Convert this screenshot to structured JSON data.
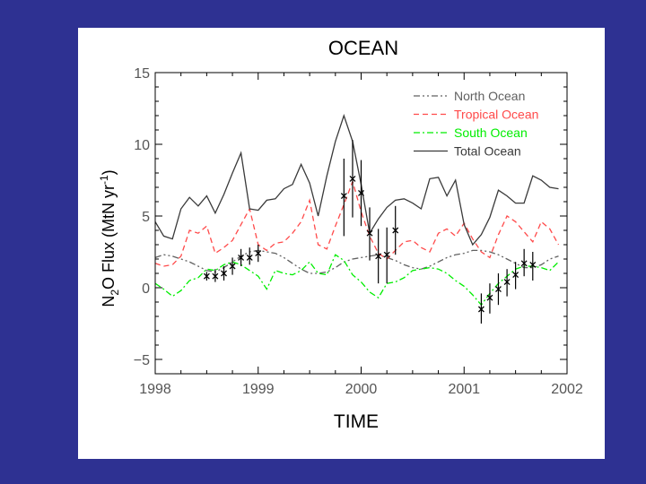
{
  "chart_data": {
    "type": "line",
    "title": "OCEAN",
    "xlabel": "TIME",
    "ylabel": "N2O Flux (MtN yr-1)",
    "ylabel_parts": {
      "pre": "N",
      "sub": "2",
      "mid": "O Flux (MtN yr",
      "sup": "-1",
      "post": ")"
    },
    "xlim": [
      1998,
      2002
    ],
    "ylim": [
      -6,
      15
    ],
    "xticks": [
      1998,
      1999,
      2000,
      2001,
      2002
    ],
    "xtick_labels": [
      "1998",
      "1999",
      "2000",
      "2001",
      "2002"
    ],
    "yticks": [
      -5,
      0,
      5,
      10,
      15
    ],
    "ytick_labels": [
      "−5",
      "0",
      "5",
      "10",
      "15"
    ],
    "legend_position": "top-right",
    "x": [
      1998.0,
      1998.083,
      1998.167,
      1998.25,
      1998.333,
      1998.417,
      1998.5,
      1998.583,
      1998.667,
      1998.75,
      1998.833,
      1998.917,
      1999.0,
      1999.083,
      1999.167,
      1999.25,
      1999.333,
      1999.417,
      1999.5,
      1999.583,
      1999.667,
      1999.75,
      1999.833,
      1999.917,
      2000.0,
      2000.083,
      2000.167,
      2000.25,
      2000.333,
      2000.417,
      2000.5,
      2000.583,
      2000.667,
      2000.75,
      2000.833,
      2000.917,
      2001.0,
      2001.083,
      2001.167,
      2001.25,
      2001.333,
      2001.417,
      2001.5,
      2001.583,
      2001.667,
      2001.75,
      2001.833,
      2001.917
    ],
    "series": [
      {
        "name": "North Ocean",
        "color": "#606060",
        "dash": "7 3 2 3 2 3",
        "values": [
          2.1,
          2.3,
          2.2,
          2.0,
          1.8,
          1.5,
          1.2,
          1.1,
          1.4,
          1.8,
          2.2,
          2.5,
          2.6,
          2.5,
          2.4,
          2.1,
          1.7,
          1.3,
          1.0,
          1.0,
          1.1,
          1.4,
          1.8,
          2.0,
          2.1,
          2.2,
          2.3,
          2.1,
          1.9,
          1.6,
          1.4,
          1.3,
          1.5,
          1.8,
          2.1,
          2.3,
          2.4,
          2.6,
          2.6,
          2.5,
          2.3,
          2.0,
          1.7,
          1.4,
          1.4,
          1.6,
          2.0,
          2.2
        ]
      },
      {
        "name": "Tropical Ocean",
        "color": "#ff4a4a",
        "dash": "6 4",
        "values": [
          1.7,
          1.5,
          1.6,
          2.2,
          4.0,
          3.8,
          4.3,
          2.4,
          2.8,
          3.3,
          4.4,
          5.5,
          3.0,
          2.6,
          3.1,
          3.2,
          3.8,
          4.6,
          6.1,
          3.0,
          2.7,
          4.3,
          5.8,
          7.4,
          5.3,
          3.6,
          2.4,
          2.0,
          2.6,
          3.2,
          3.3,
          2.8,
          2.5,
          3.8,
          4.1,
          3.6,
          4.5,
          3.4,
          2.5,
          2.1,
          3.7,
          5.0,
          4.6,
          3.9,
          3.2,
          4.6,
          4.1,
          3.0
        ]
      },
      {
        "name": "South Ocean",
        "color": "#00ee00",
        "dash": "7 3 2 3",
        "values": [
          0.3,
          -0.1,
          -0.6,
          -0.2,
          0.5,
          0.7,
          1.3,
          1.2,
          1.6,
          1.8,
          1.6,
          1.2,
          0.8,
          -0.1,
          1.2,
          1.0,
          0.9,
          1.2,
          1.8,
          1.0,
          0.9,
          2.3,
          1.9,
          0.9,
          0.4,
          -0.3,
          -0.7,
          0.3,
          0.4,
          0.7,
          1.2,
          1.3,
          1.4,
          1.3,
          1.0,
          0.5,
          0.1,
          -0.5,
          -1.2,
          -0.4,
          0.3,
          0.8,
          1.3,
          1.5,
          1.5,
          1.4,
          1.2,
          1.8
        ]
      },
      {
        "name": "Total Ocean",
        "color": "#3a3a3a",
        "dash": "",
        "values": [
          4.6,
          3.6,
          3.4,
          5.5,
          6.3,
          5.7,
          6.4,
          5.2,
          6.5,
          8.0,
          9.4,
          5.5,
          5.4,
          6.1,
          6.2,
          6.9,
          7.2,
          8.6,
          7.3,
          5.0,
          7.8,
          10.2,
          12.0,
          10.2,
          7.2,
          3.8,
          4.8,
          5.6,
          6.1,
          6.2,
          5.9,
          5.5,
          7.6,
          7.7,
          6.4,
          7.5,
          4.4,
          3.0,
          3.7,
          4.9,
          6.8,
          6.4,
          5.9,
          5.9,
          7.8,
          7.5,
          7.0,
          6.9
        ]
      }
    ],
    "observations": {
      "name": "observations",
      "points": [
        {
          "x": 1998.5,
          "y": 0.8,
          "lo": 0.5,
          "hi": 1.1
        },
        {
          "x": 1998.583,
          "y": 0.8,
          "lo": 0.4,
          "hi": 1.3
        },
        {
          "x": 1998.667,
          "y": 1.0,
          "lo": 0.5,
          "hi": 1.5
        },
        {
          "x": 1998.75,
          "y": 1.5,
          "lo": 0.9,
          "hi": 2.1
        },
        {
          "x": 1998.833,
          "y": 2.1,
          "lo": 1.5,
          "hi": 2.7
        },
        {
          "x": 1998.917,
          "y": 2.1,
          "lo": 1.6,
          "hi": 2.8
        },
        {
          "x": 1999.0,
          "y": 2.4,
          "lo": 1.8,
          "hi": 3.0
        },
        {
          "x": 1999.833,
          "y": 6.4,
          "lo": 3.6,
          "hi": 9.0
        },
        {
          "x": 1999.917,
          "y": 7.6,
          "lo": 4.9,
          "hi": 10.3
        },
        {
          "x": 2000.0,
          "y": 6.6,
          "lo": 4.3,
          "hi": 8.9
        },
        {
          "x": 2000.083,
          "y": 3.8,
          "lo": 1.9,
          "hi": 5.6
        },
        {
          "x": 2000.167,
          "y": 2.2,
          "lo": 0.3,
          "hi": 4.1
        },
        {
          "x": 2000.25,
          "y": 2.3,
          "lo": 0.3,
          "hi": 4.2
        },
        {
          "x": 2000.333,
          "y": 4.0,
          "lo": 2.3,
          "hi": 5.7
        },
        {
          "x": 2001.167,
          "y": -1.5,
          "lo": -2.5,
          "hi": -0.4
        },
        {
          "x": 2001.25,
          "y": -0.7,
          "lo": -1.8,
          "hi": 0.3
        },
        {
          "x": 2001.333,
          "y": -0.1,
          "lo": -1.2,
          "hi": 1.0
        },
        {
          "x": 2001.417,
          "y": 0.4,
          "lo": -0.6,
          "hi": 1.3
        },
        {
          "x": 2001.5,
          "y": 0.9,
          "lo": -0.1,
          "hi": 1.8
        },
        {
          "x": 2001.583,
          "y": 1.7,
          "lo": 0.8,
          "hi": 2.7
        },
        {
          "x": 2001.667,
          "y": 1.6,
          "lo": 0.5,
          "hi": 2.5
        }
      ]
    }
  }
}
